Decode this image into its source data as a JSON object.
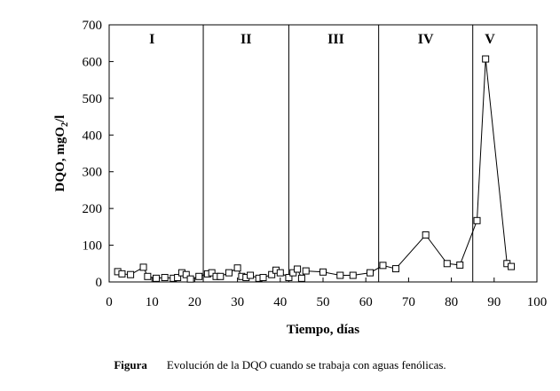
{
  "chart_data": {
    "type": "line",
    "xlabel": "Tiempo, días",
    "ylabel": "DQO, mgO",
    "ylabel_subscript": "2",
    "ylabel_suffix": "/l",
    "xlim": [
      0,
      100
    ],
    "ylim": [
      0,
      700
    ],
    "xticks": [
      0,
      10,
      20,
      30,
      40,
      50,
      60,
      70,
      80,
      90,
      100
    ],
    "yticks": [
      0,
      100,
      200,
      300,
      400,
      500,
      600,
      700
    ],
    "grid": false,
    "marker": "open-square",
    "phase_boundaries": [
      22,
      42,
      63,
      85
    ],
    "phases": [
      {
        "label": "I",
        "x": 10
      },
      {
        "label": "II",
        "x": 32
      },
      {
        "label": "III",
        "x": 53
      },
      {
        "label": "IV",
        "x": 74
      },
      {
        "label": "V",
        "x": 89
      }
    ],
    "series": [
      {
        "x": [
          2,
          3,
          5,
          8,
          9,
          11,
          13,
          15,
          16,
          17,
          18,
          19,
          21,
          23,
          24,
          25,
          26,
          28,
          30,
          31,
          32,
          33,
          35,
          36,
          38,
          39,
          40,
          42,
          43,
          44,
          45,
          46,
          50,
          54,
          57,
          61,
          64,
          67,
          74,
          79,
          82,
          86,
          88,
          93,
          94
        ],
        "y": [
          28,
          22,
          20,
          40,
          15,
          10,
          12,
          10,
          12,
          25,
          20,
          8,
          15,
          22,
          25,
          15,
          15,
          25,
          38,
          15,
          12,
          18,
          10,
          12,
          20,
          32,
          25,
          12,
          25,
          35,
          10,
          30,
          27,
          18,
          18,
          25,
          45,
          36,
          128,
          50,
          46,
          167,
          607,
          50,
          42
        ]
      }
    ]
  },
  "caption": {
    "label": "Figura",
    "text": "Evolución de la DQO cuando se trabaja con aguas fenólicas."
  }
}
